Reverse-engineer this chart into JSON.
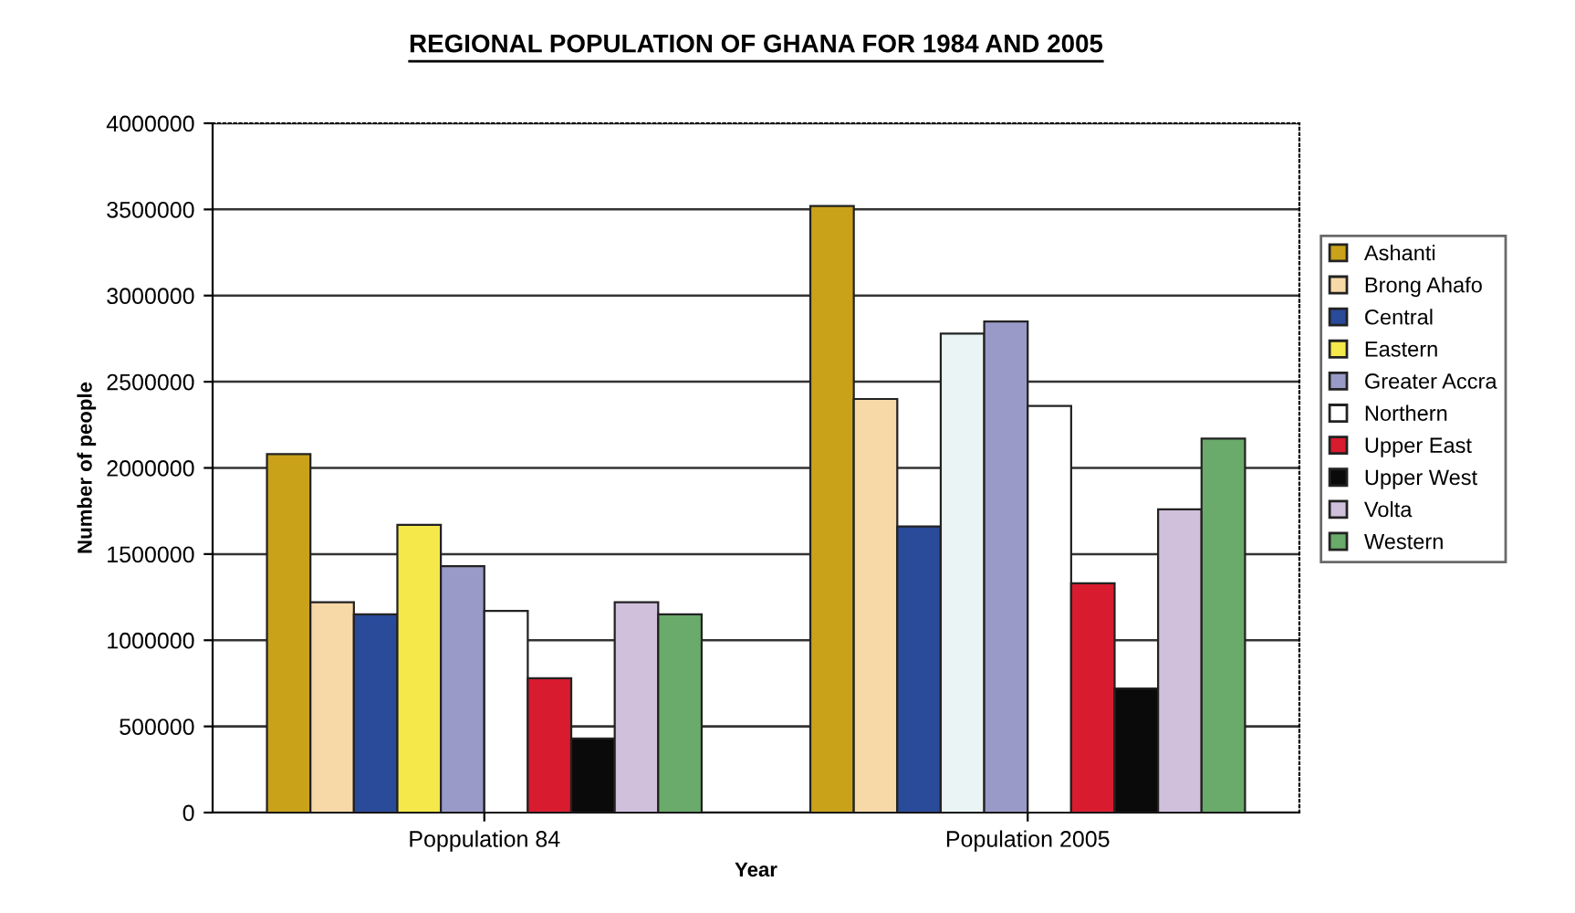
{
  "chart_data": {
    "type": "bar",
    "title": "REGIONAL POPULATION OF GHANA FOR 1984 AND 2005",
    "xlabel": "Year",
    "ylabel": "Number of people",
    "categories": [
      "Poppulation 84",
      "Population 2005"
    ],
    "series": [
      {
        "name": "Ashanti",
        "color": "#c9a21a",
        "values": [
          2080000,
          3520000
        ]
      },
      {
        "name": "Brong Ahafo",
        "color": "#f7d9a8",
        "values": [
          1220000,
          2400000
        ]
      },
      {
        "name": "Central",
        "color": "#2a4a9a",
        "values": [
          1150000,
          1660000
        ]
      },
      {
        "name": "Eastern",
        "colors": [
          "#f5e84a",
          "#eaf4f4"
        ],
        "values": [
          1670000,
          2780000
        ]
      },
      {
        "name": "Greater Accra",
        "color": "#9a9ac8",
        "values": [
          1430000,
          2850000
        ]
      },
      {
        "name": "Northern",
        "color": "#ffffff",
        "values": [
          1170000,
          2360000
        ]
      },
      {
        "name": "Upper East",
        "color": "#d81b2e",
        "values": [
          780000,
          1330000
        ]
      },
      {
        "name": "Upper West",
        "color": "#0a0a0a",
        "values": [
          430000,
          720000
        ]
      },
      {
        "name": "Volta",
        "color": "#d0c0dc",
        "values": [
          1220000,
          1760000
        ]
      },
      {
        "name": "Western",
        "color": "#6aaa6a",
        "values": [
          1150000,
          2170000
        ]
      }
    ],
    "ylim": [
      0,
      4000000
    ],
    "yticks": [
      0,
      500000,
      1000000,
      1500000,
      2000000,
      2500000,
      3000000,
      3500000,
      4000000
    ],
    "grid": "y",
    "legend": "right"
  }
}
